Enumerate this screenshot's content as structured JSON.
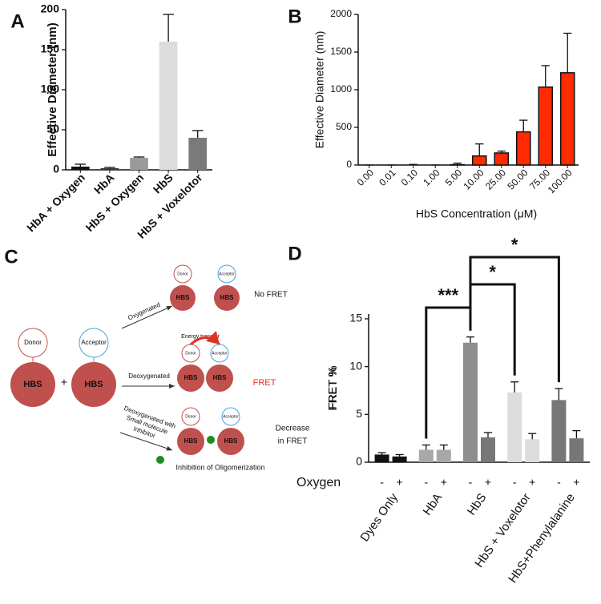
{
  "chart_data": [
    {
      "type": "bar",
      "panel": "A",
      "y_label": "Effective Diameter (nm)",
      "categories": [
        "HbA + Oxygen",
        "HbA",
        "HbS + Oxygen",
        "HbS",
        "HbS + Voxelotor"
      ],
      "values": [
        4,
        2,
        15,
        160,
        40
      ],
      "errors": [
        3,
        1,
        1,
        34,
        9
      ],
      "colors": [
        "#111111",
        "#3a3a3a",
        "#9a9a9a",
        "#dcdcdc",
        "#7a7a7a"
      ],
      "ylim": [
        0,
        200
      ],
      "yticks": [
        0,
        50,
        100,
        150,
        200
      ]
    },
    {
      "type": "bar",
      "panel": "B",
      "y_label": "Effective Diameter (nm)",
      "x_label": "HbS Concentration (μM)",
      "categories": [
        "0.00",
        "0.01",
        "0.10",
        "1.00",
        "5.00",
        "10.00",
        "25.00",
        "50.00",
        "75.00",
        "100.00"
      ],
      "values": [
        0,
        0,
        0,
        0,
        5,
        120,
        160,
        440,
        1035,
        1225
      ],
      "errors": [
        0,
        0,
        8,
        0,
        20,
        160,
        25,
        155,
        285,
        525
      ],
      "color": "#ff2a00",
      "ylim": [
        0,
        2000
      ],
      "yticks": [
        0,
        500,
        1000,
        1500,
        2000
      ]
    },
    {
      "type": "grouped-bar",
      "panel": "D",
      "y_label": "FRET %",
      "row_label": "Oxygen",
      "categories": [
        "Dyes Only",
        "HbA",
        "HbS",
        "HbS + Voxelotor",
        "HbS+Phenylalanine"
      ],
      "series": [
        {
          "name": "-",
          "values": [
            0.8,
            1.3,
            12.5,
            7.3,
            6.5
          ],
          "errors": [
            0.2,
            0.5,
            0.6,
            1.1,
            1.2
          ],
          "colors": [
            "#111111",
            "#a8a8a8",
            "#8e8e8e",
            "#dcdcdc",
            "#777777"
          ]
        },
        {
          "name": "+",
          "values": [
            0.6,
            1.3,
            2.6,
            2.4,
            2.5
          ],
          "errors": [
            0.2,
            0.5,
            0.5,
            0.6,
            0.8
          ],
          "colors": [
            "#111111",
            "#a8a8a8",
            "#777777",
            "#dcdcdc",
            "#777777"
          ]
        }
      ],
      "annotations": [
        "***",
        "*",
        "*"
      ],
      "ylim": [
        0,
        15.5
      ],
      "yticks": [
        0,
        5,
        10,
        15
      ]
    }
  ],
  "diagram": {
    "panel": "C",
    "donor": "Donor",
    "acceptor": "Acceptor",
    "protein": "HBS",
    "plus": "+",
    "oxygenated": "Oxygenated",
    "no_fret": "No FRET",
    "energy_transfer": "Energy transfer",
    "deoxygenated": "Deoxygenated",
    "fret": "FRET",
    "inhibitor_lines": [
      "Deoxygenated with",
      "Small molecule",
      "Inhibitor"
    ],
    "decrease_lines": [
      "Decrease",
      "in FRET"
    ],
    "inhibition": "Inhibition of Oligomerization"
  }
}
